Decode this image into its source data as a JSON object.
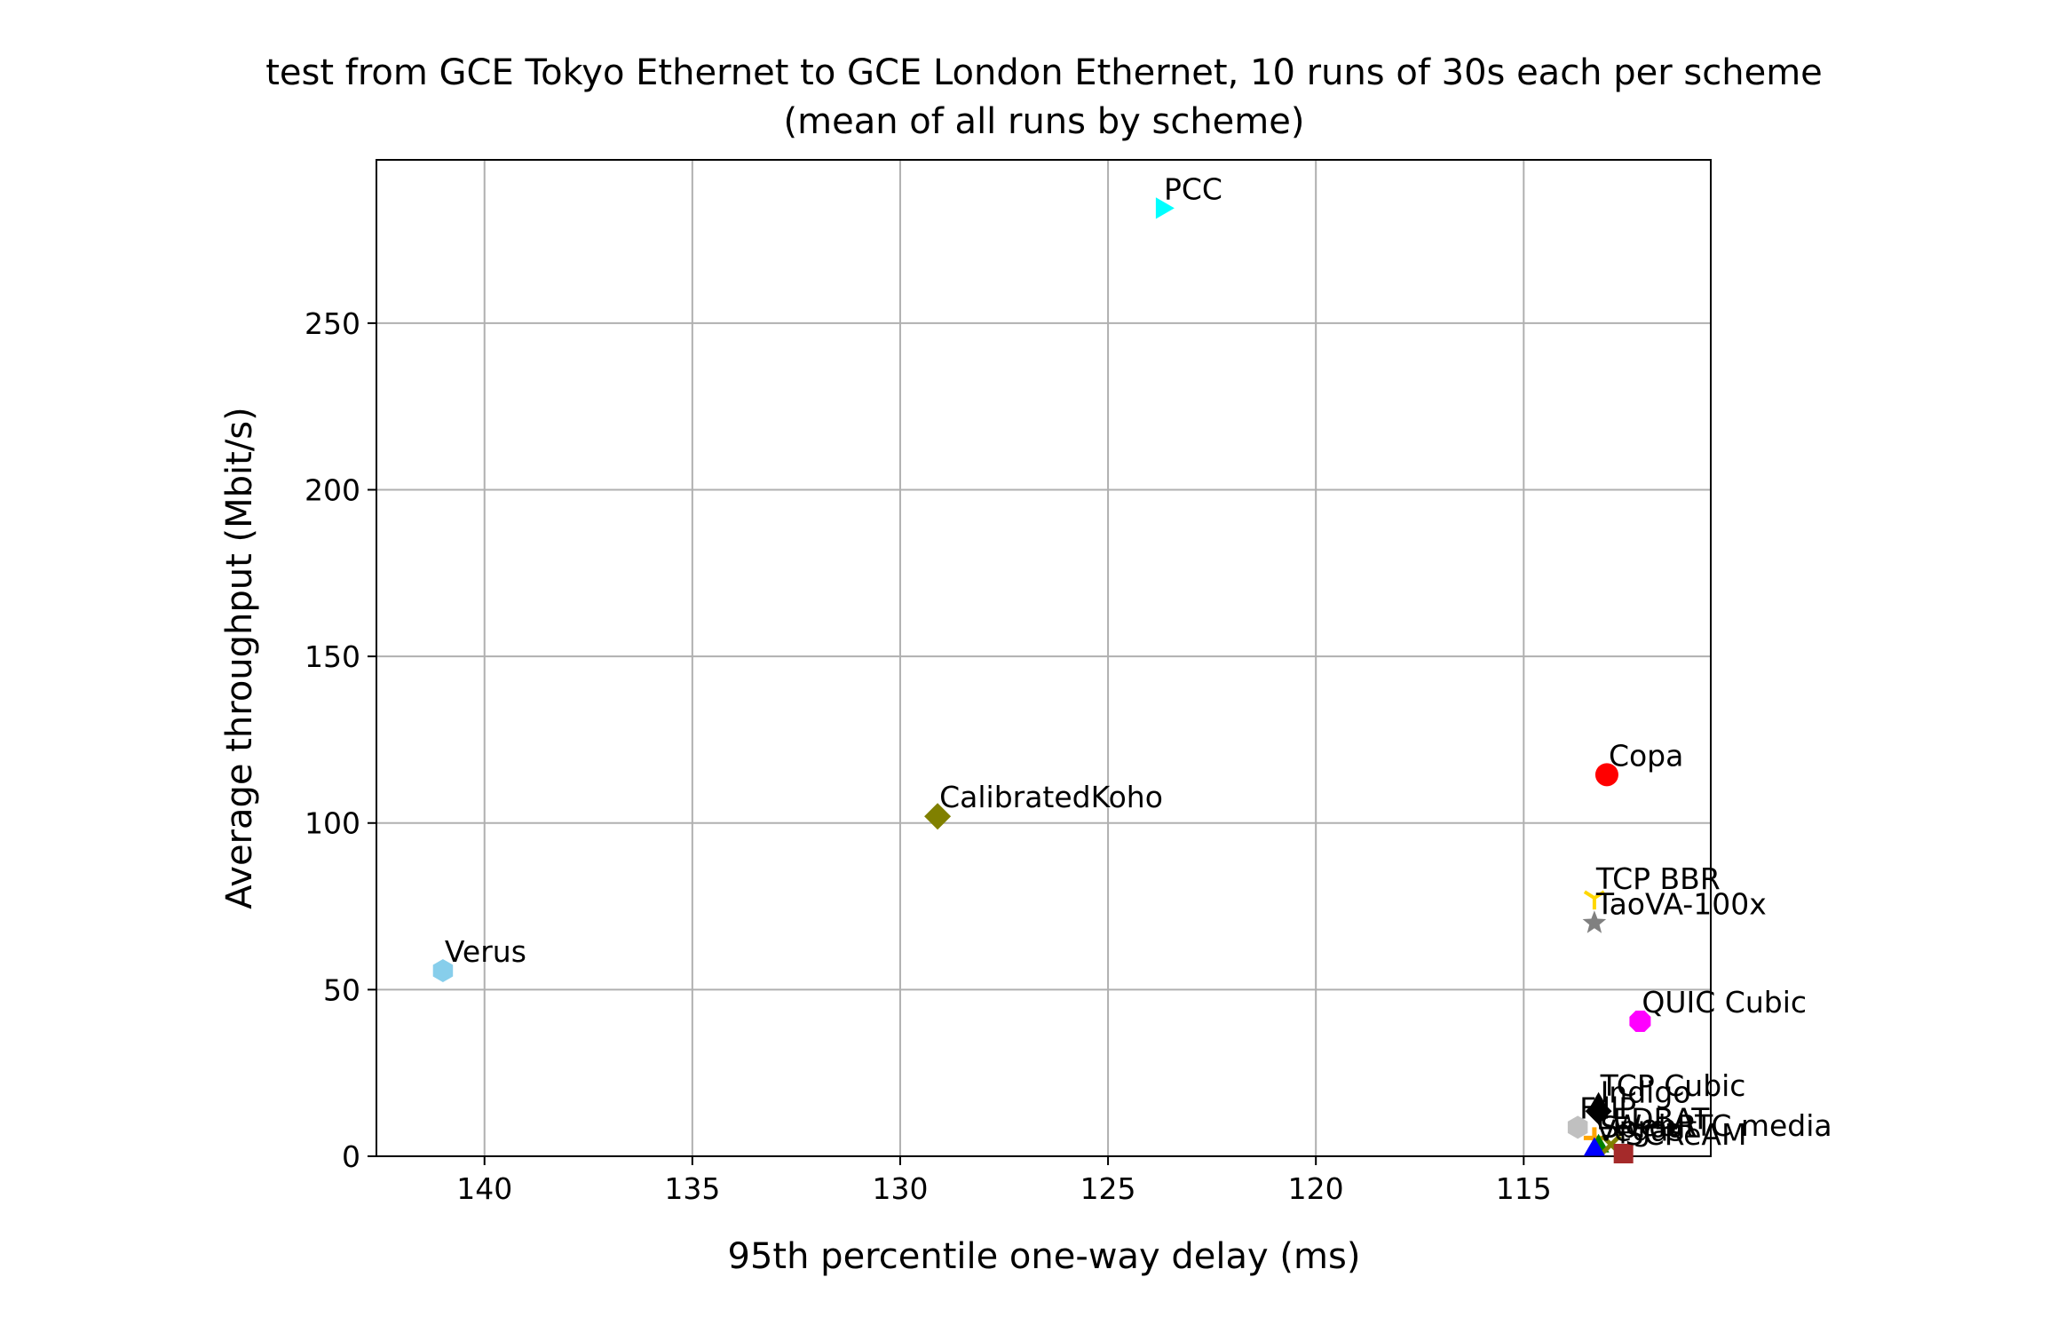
{
  "chart_data": {
    "type": "scatter",
    "title": "test from GCE Tokyo Ethernet to GCE London Ethernet, 10 runs of 30s each per scheme",
    "subtitle": "(mean of all runs by scheme)",
    "xlabel": "95th percentile one-way delay (ms)",
    "ylabel": "Average throughput (Mbit/s)",
    "x_inverted": true,
    "xlim": [
      142.6,
      110.5
    ],
    "ylim": [
      0,
      299
    ],
    "x_ticks": [
      140,
      135,
      130,
      125,
      120,
      115
    ],
    "y_ticks": [
      0,
      50,
      100,
      150,
      200,
      250
    ],
    "grid": true,
    "points": [
      {
        "name": "PCC",
        "x": 123.7,
        "y": 284.5,
        "color": "#00ffff",
        "marker": "triangle-right"
      },
      {
        "name": "Copa",
        "x": 113.0,
        "y": 114.5,
        "color": "#ff0000",
        "marker": "circle"
      },
      {
        "name": "CalibratedKoho",
        "x": 129.1,
        "y": 102.0,
        "color": "#808000",
        "marker": "diamond"
      },
      {
        "name": "TCP BBR",
        "x": 113.3,
        "y": 77.5,
        "color": "#ffd700",
        "marker": "tri-down"
      },
      {
        "name": "TaoVA-100x",
        "x": 113.3,
        "y": 70.0,
        "color": "#808080",
        "marker": "star"
      },
      {
        "name": "Verus",
        "x": 141.0,
        "y": 55.7,
        "color": "#87ceeb",
        "marker": "hexagon"
      },
      {
        "name": "QUIC Cubic",
        "x": 112.2,
        "y": 40.5,
        "color": "#ff00ff",
        "marker": "octagon"
      },
      {
        "name": "TCP Cubic",
        "x": 113.2,
        "y": 15.5,
        "color": "#000000",
        "marker": "triangle-up"
      },
      {
        "name": "Indigo",
        "x": 113.2,
        "y": 13.5,
        "color": "#000000",
        "marker": "diamond"
      },
      {
        "name": "FillP",
        "x": 113.7,
        "y": 8.7,
        "color": "#c0c0c0",
        "marker": "hexagon"
      },
      {
        "name": "LEDBAT",
        "x": 113.3,
        "y": 5.5,
        "color": "#ffa500",
        "marker": "plus"
      },
      {
        "name": "Sprout",
        "x": 113.2,
        "y": 3.0,
        "color": "#008000",
        "marker": "triangle-up"
      },
      {
        "name": "WebRTC media",
        "x": 112.9,
        "y": 3.5,
        "color": "#808000",
        "marker": "x"
      },
      {
        "name": "Vegas",
        "x": 113.3,
        "y": 2.0,
        "color": "#0000ff",
        "marker": "triangle-up"
      },
      {
        "name": "SCReAM",
        "x": 112.6,
        "y": 0.8,
        "color": "#a52a2a",
        "marker": "square"
      }
    ]
  }
}
